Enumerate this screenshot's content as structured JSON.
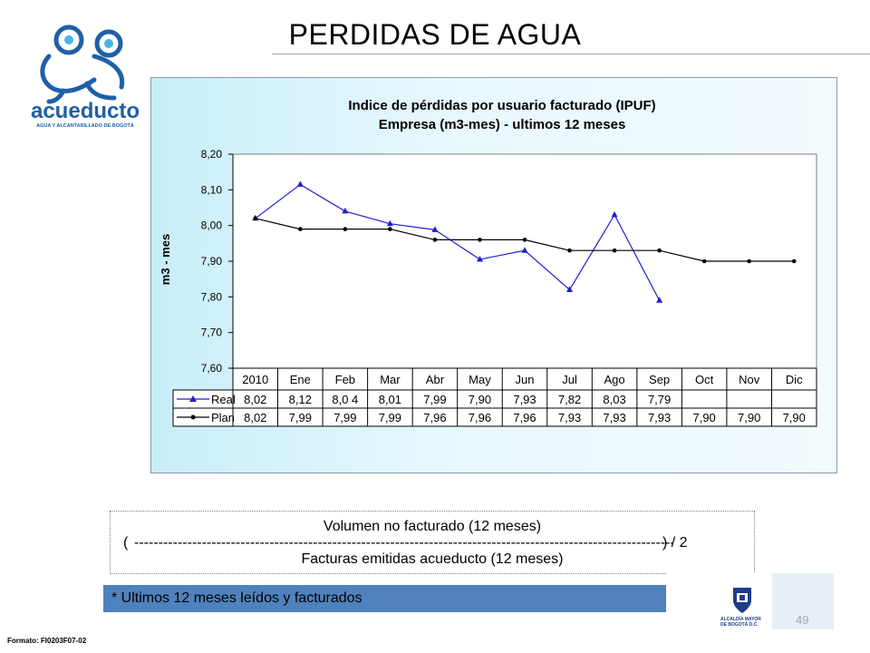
{
  "slide": {
    "title": "PERDIDAS DE AGUA",
    "page_number": "49",
    "format_code": "Formato: FI0203F07-02"
  },
  "logo": {
    "name": "acueducto",
    "tagline": "AGUA Y ALCANTARILLADO DE BOGOTÁ",
    "color": "#1f5fa8",
    "accent": "#4ab3e6"
  },
  "chart_data": {
    "type": "line",
    "title": "Indice de pérdidas por usuario facturado (IPUF)",
    "subtitle": "Empresa  (m3-mes) - ultimos 12 meses",
    "xlabel": "",
    "ylabel": "m3 - mes",
    "ylim": [
      7.6,
      8.2
    ],
    "yticks": [
      "8,20",
      "8,10",
      "8,00",
      "7,90",
      "7,80",
      "7,70",
      "7,60"
    ],
    "ytick_values": [
      8.2,
      8.1,
      8.0,
      7.9,
      7.8,
      7.7,
      7.6
    ],
    "grid": false,
    "categories": [
      "2010",
      "Ene",
      "Feb",
      "Mar",
      "Abr",
      "May",
      "Jun",
      "Jul",
      "Ago",
      "Sep",
      "Oct",
      "Nov",
      "Dic"
    ],
    "series": [
      {
        "name": "Real",
        "color": "#1f1fd0",
        "marker": "triangle",
        "values": [
          8.02,
          8.115,
          8.04,
          8.005,
          7.988,
          7.905,
          7.93,
          7.82,
          8.03,
          7.79,
          null,
          null,
          null
        ],
        "labels": [
          "8,02",
          "8,12",
          "8,0 4",
          "8,01",
          "7,99",
          "7,90",
          "7,93",
          "7,82",
          "8,03",
          "7,79",
          "",
          "",
          ""
        ]
      },
      {
        "name": "Plan",
        "color": "#000000",
        "marker": "circle",
        "values": [
          8.02,
          7.99,
          7.99,
          7.99,
          7.96,
          7.96,
          7.96,
          7.93,
          7.93,
          7.93,
          7.9,
          7.9,
          7.9
        ],
        "labels": [
          "8,02",
          "7,99",
          "7,99",
          "7,99",
          "7,96",
          "7,96",
          "7,96",
          "7,93",
          "7,93",
          "7,93",
          "7,90",
          "7,90",
          "7,90"
        ]
      }
    ]
  },
  "formula": {
    "numerator": "Volumen no facturado (12 meses)",
    "open_paren": "(",
    "dashes": "------------------------------------------------------------------------------------------------------------------------------------------------",
    "close": ")  / 2",
    "denominator": "Facturas emitidas acueducto (12 meses)"
  },
  "note": {
    "text": "* Ultimos 12 meses leídos y facturados"
  },
  "bogota": {
    "line1": "ALCALDÍA MAYOR",
    "line2": "DE BOGOTÁ D.C."
  }
}
